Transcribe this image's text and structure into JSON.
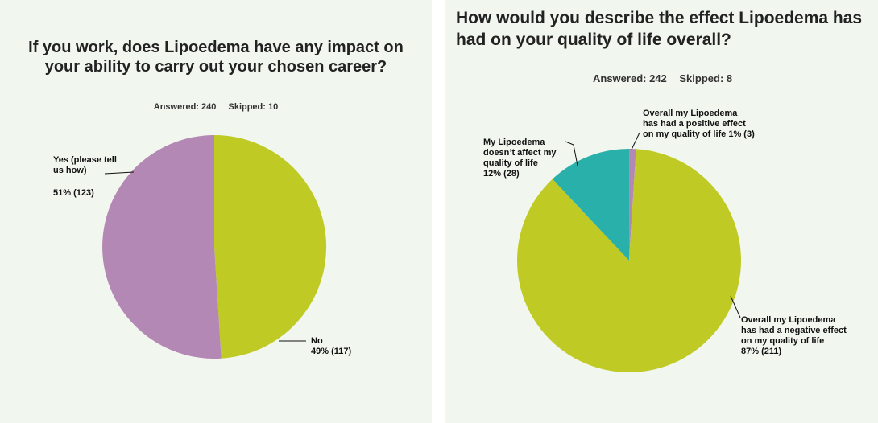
{
  "chart_data": [
    {
      "type": "pie",
      "title": "If you work, does Lipoedema have any impact on your ability to carry out your chosen career?",
      "answered": "Answered: 240",
      "skipped": "Skipped: 10",
      "slices": [
        {
          "label_lines": [
            "No"
          ],
          "value_text": "49% (117)",
          "percent": 49,
          "count": 117,
          "color": "#bfcb24"
        },
        {
          "label_lines": [
            "Yes (please tell",
            "us how)"
          ],
          "value_text": "51% (123)",
          "percent": 51,
          "count": 123,
          "color": "#b488b4"
        }
      ]
    },
    {
      "type": "pie",
      "title": "How would you describe the effect Lipoedema has had on your quality of life overall?",
      "answered": "Answered: 242",
      "skipped": "Skipped: 8",
      "slices": [
        {
          "label_lines": [
            "Overall my Lipoedema",
            "has had a positive effect",
            "on my quality of life 1% (3)"
          ],
          "value_text": "",
          "percent": 1,
          "count": 3,
          "color": "#b488b4"
        },
        {
          "label_lines": [
            "Overall my Lipoedema",
            "has had a negative effect",
            "on my quality of life"
          ],
          "value_text": "87% (211)",
          "percent": 87,
          "count": 211,
          "color": "#bfcb24"
        },
        {
          "label_lines": [
            "My Lipoedema",
            "doesn’t affect my",
            "quality of life"
          ],
          "value_text": "12% (28)",
          "percent": 12,
          "count": 28,
          "color": "#2ab0ab"
        }
      ]
    }
  ]
}
